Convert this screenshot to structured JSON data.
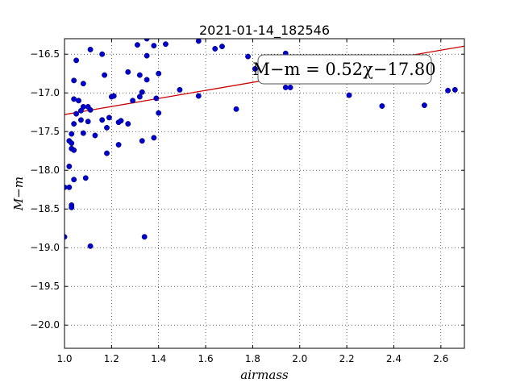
{
  "chart_data": {
    "type": "scatter",
    "title": "2021-01-14_182546",
    "xlabel": "airmass",
    "ylabel": "M−m",
    "xlim": [
      1.0,
      2.7
    ],
    "ylim": [
      -20.3,
      -16.3
    ],
    "xticks": [
      1.0,
      1.2,
      1.4,
      1.6,
      1.8,
      2.0,
      2.2,
      2.4,
      2.6
    ],
    "xtick_labels": [
      "1.0",
      "1.2",
      "1.4",
      "1.6",
      "1.8",
      "2.0",
      "2.2",
      "2.4",
      "2.6"
    ],
    "yticks": [
      -16.5,
      -17.0,
      -17.5,
      -18.0,
      -18.5,
      -19.0,
      -19.5,
      -20.0
    ],
    "ytick_labels": [
      "−16.5",
      "−17.0",
      "−17.5",
      "−18.0",
      "−18.5",
      "−19.0",
      "−19.5",
      "−20.0"
    ],
    "grid": true,
    "point_color": "#0000cc",
    "fit_color": "#cc0000",
    "fit": {
      "slope": 0.52,
      "intercept": -17.8
    },
    "annotation": "M−m = 0.52χ−17.80",
    "points": [
      [
        1.0,
        -18.22
      ],
      [
        1.0,
        -18.86
      ],
      [
        1.02,
        -17.62
      ],
      [
        1.02,
        -17.95
      ],
      [
        1.02,
        -18.22
      ],
      [
        1.03,
        -17.53
      ],
      [
        1.03,
        -17.65
      ],
      [
        1.03,
        -17.72
      ],
      [
        1.03,
        -18.45
      ],
      [
        1.03,
        -18.48
      ],
      [
        1.04,
        -17.08
      ],
      [
        1.04,
        -17.4
      ],
      [
        1.04,
        -17.74
      ],
      [
        1.04,
        -18.12
      ],
      [
        1.04,
        -16.84
      ],
      [
        1.05,
        -16.58
      ],
      [
        1.05,
        -17.27
      ],
      [
        1.06,
        -17.1
      ],
      [
        1.07,
        -17.23
      ],
      [
        1.07,
        -17.35
      ],
      [
        1.08,
        -16.88
      ],
      [
        1.08,
        -17.18
      ],
      [
        1.08,
        -17.52
      ],
      [
        1.09,
        -18.1
      ],
      [
        1.1,
        -17.37
      ],
      [
        1.1,
        -17.18
      ],
      [
        1.11,
        -17.22
      ],
      [
        1.11,
        -16.44
      ],
      [
        1.11,
        -18.98
      ],
      [
        1.13,
        -17.55
      ],
      [
        1.16,
        -17.35
      ],
      [
        1.16,
        -16.5
      ],
      [
        1.17,
        -16.77
      ],
      [
        1.18,
        -17.45
      ],
      [
        1.18,
        -17.78
      ],
      [
        1.19,
        -17.32
      ],
      [
        1.2,
        -17.05
      ],
      [
        1.21,
        -17.04
      ],
      [
        1.23,
        -17.38
      ],
      [
        1.23,
        -17.67
      ],
      [
        1.24,
        -17.36
      ],
      [
        1.27,
        -17.4
      ],
      [
        1.27,
        -16.73
      ],
      [
        1.29,
        -17.1
      ],
      [
        1.31,
        -16.38
      ],
      [
        1.32,
        -17.05
      ],
      [
        1.32,
        -16.77
      ],
      [
        1.33,
        -17.62
      ],
      [
        1.33,
        -16.99
      ],
      [
        1.34,
        -18.86
      ],
      [
        1.35,
        -16.52
      ],
      [
        1.35,
        -16.3
      ],
      [
        1.35,
        -16.83
      ],
      [
        1.38,
        -17.58
      ],
      [
        1.38,
        -16.39
      ],
      [
        1.39,
        -17.07
      ],
      [
        1.4,
        -16.75
      ],
      [
        1.4,
        -17.26
      ],
      [
        1.43,
        -16.37
      ],
      [
        1.49,
        -16.96
      ],
      [
        1.57,
        -17.04
      ],
      [
        1.57,
        -16.33
      ],
      [
        1.64,
        -16.43
      ],
      [
        1.67,
        -16.4
      ],
      [
        1.73,
        -17.21
      ],
      [
        1.78,
        -16.53
      ],
      [
        1.81,
        -16.69
      ],
      [
        1.94,
        -16.93
      ],
      [
        1.94,
        -16.49
      ],
      [
        1.96,
        -16.93
      ],
      [
        2.21,
        -17.03
      ],
      [
        2.35,
        -17.17
      ],
      [
        2.53,
        -17.16
      ],
      [
        2.63,
        -16.97
      ],
      [
        2.66,
        -16.96
      ]
    ]
  }
}
